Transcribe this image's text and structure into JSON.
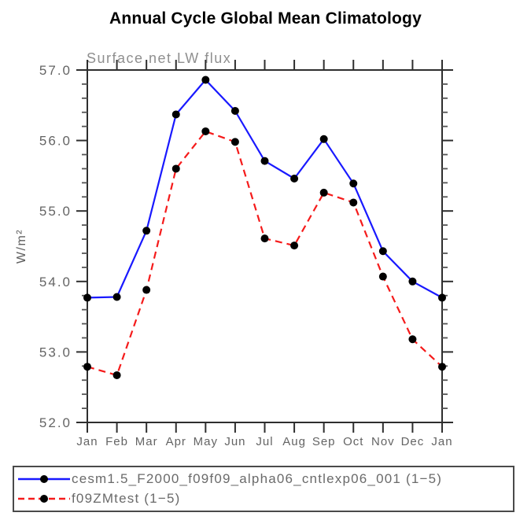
{
  "chart_data": {
    "type": "line",
    "title": "Annual Cycle Global Mean Climatology",
    "subtitle": "Surface net LW flux",
    "ylabel": "W/m²",
    "x": [
      "Jan",
      "Feb",
      "Mar",
      "Apr",
      "May",
      "Jun",
      "Jul",
      "Aug",
      "Sep",
      "Oct",
      "Nov",
      "Dec",
      "Jan"
    ],
    "ylim": [
      52.0,
      57.0
    ],
    "ytick_labels": [
      "52.0",
      "53.0",
      "54.0",
      "55.0",
      "56.0",
      "57.0"
    ],
    "ytick_values": [
      52.0,
      53.0,
      54.0,
      55.0,
      56.0,
      57.0
    ],
    "y_minor_step": 0.2,
    "grid": false,
    "legend_position": "bottom-box",
    "marker": "filled-circle",
    "marker_color": "#000000",
    "series": [
      {
        "name": "cesm1.5_F2000_f09f09_alpha06_cntlexp06_001",
        "legend_label": "cesm1.5_F2000_f09f09_alpha06_cntlexp06_001 (1−5)",
        "color": "#1919ff",
        "line_style": "solid",
        "values": [
          53.77,
          53.78,
          54.72,
          56.37,
          56.86,
          56.42,
          55.71,
          55.46,
          56.02,
          55.39,
          54.43,
          54.0,
          53.77
        ]
      },
      {
        "name": "f09ZMtest",
        "legend_label": "f09ZMtest (1−5)",
        "color": "#f51b1b",
        "line_style": "dashed",
        "values": [
          52.79,
          52.67,
          53.88,
          55.6,
          56.13,
          55.98,
          54.61,
          54.51,
          55.26,
          55.12,
          54.07,
          53.18,
          52.79
        ]
      }
    ],
    "colors": {
      "axis": "#2e2e2e",
      "tick_label": "#646464",
      "subtitle": "#8f8f8f",
      "ylabel": "#5f5f5f"
    }
  }
}
